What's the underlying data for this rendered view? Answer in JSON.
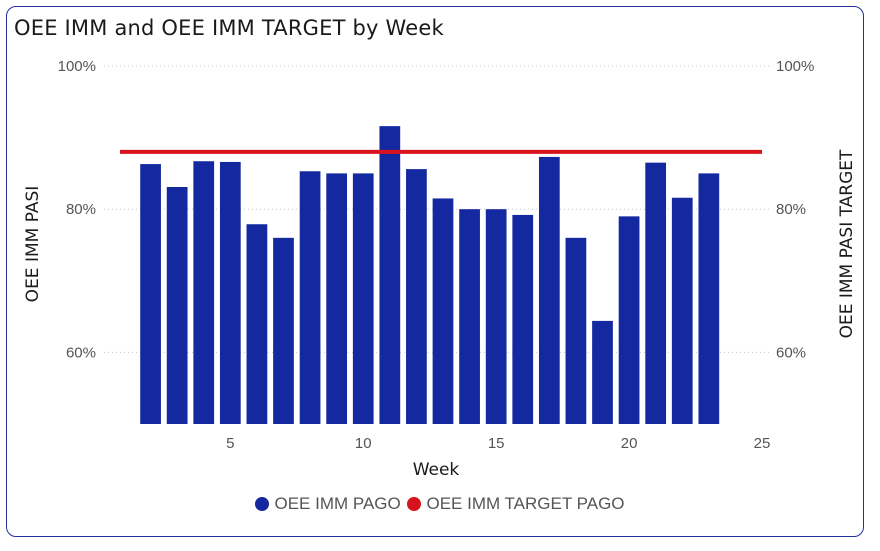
{
  "chart_data": {
    "type": "bar",
    "title": "OEE IMM and OEE IMM TARGET by Week",
    "xlabel": "Week",
    "ylabel": "OEE IMM PASI",
    "y2label": "OEE IMM PASI TARGET",
    "x_ticks": [
      "5",
      "10",
      "15",
      "20",
      "25"
    ],
    "y_ticks": [
      "60%",
      "80%",
      "100%"
    ],
    "y2_ticks": [
      "60%",
      "80%",
      "100%"
    ],
    "xlim": [
      0.85,
      25
    ],
    "ylim": [
      50,
      100
    ],
    "grid": true,
    "legend_position": "bottom",
    "colors": {
      "bar": "#1428a0",
      "target": "#d7141e"
    },
    "series": [
      {
        "name": "OEE IMM PAGO",
        "type": "bar",
        "x": [
          2,
          3,
          4,
          5,
          6,
          7,
          8,
          9,
          10,
          11,
          12,
          13,
          14,
          15,
          16,
          17,
          18,
          19,
          20,
          21,
          22,
          23
        ],
        "values": [
          86.3,
          83.1,
          86.7,
          86.6,
          77.9,
          76.0,
          85.3,
          85.0,
          85.0,
          91.6,
          85.6,
          81.5,
          80.0,
          80.0,
          79.2,
          87.3,
          76.0,
          64.4,
          79.0,
          86.5,
          81.6,
          85.0
        ]
      },
      {
        "name": "OEE IMM TARGET PAGO",
        "type": "line",
        "value": 88.0
      }
    ]
  }
}
